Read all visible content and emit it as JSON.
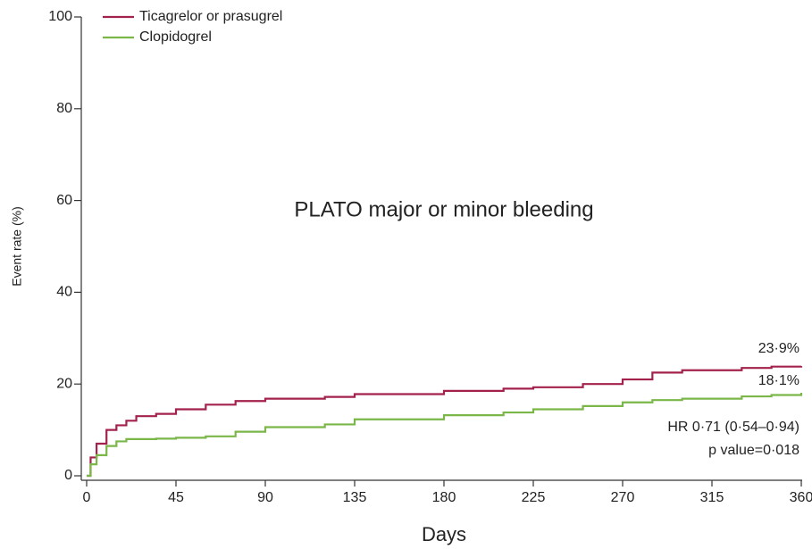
{
  "chart_data": {
    "type": "line",
    "title": "PLATO major or minor bleeding",
    "xlabel": "Days",
    "ylabel": "Event rate (%)",
    "x": [
      0,
      2,
      5,
      10,
      15,
      20,
      25,
      35,
      45,
      60,
      75,
      90,
      120,
      135,
      180,
      210,
      225,
      250,
      270,
      285,
      300,
      330,
      345,
      360
    ],
    "series": [
      {
        "name": "Ticagrelor or prasugrel",
        "color": "#a3224c",
        "values": [
          0,
          4,
          7,
          10,
          11,
          12,
          13,
          13.5,
          14.5,
          15.5,
          16.3,
          16.8,
          17.2,
          17.8,
          18.5,
          19,
          19.3,
          20,
          21,
          22.5,
          23,
          23.5,
          23.8,
          23.9
        ]
      },
      {
        "name": "Clopidogrel",
        "color": "#7ab648",
        "values": [
          0,
          2.5,
          4.5,
          6.5,
          7.5,
          8,
          8,
          8.1,
          8.3,
          8.6,
          9.6,
          10.6,
          11.2,
          12.3,
          13.2,
          13.8,
          14.5,
          15.2,
          16,
          16.5,
          16.8,
          17.3,
          17.6,
          18.1
        ]
      }
    ],
    "annotations": [
      "23·9%",
      "18·1%",
      "HR 0·71 (0·54–0·94)",
      "p value=0·018"
    ],
    "xlim": [
      0,
      360
    ],
    "ylim": [
      0,
      100
    ],
    "xticks": [
      0,
      45,
      90,
      135,
      180,
      225,
      270,
      315,
      360
    ],
    "yticks": [
      0,
      20,
      40,
      60,
      80,
      100
    ],
    "step": true,
    "legend": "top-left"
  }
}
